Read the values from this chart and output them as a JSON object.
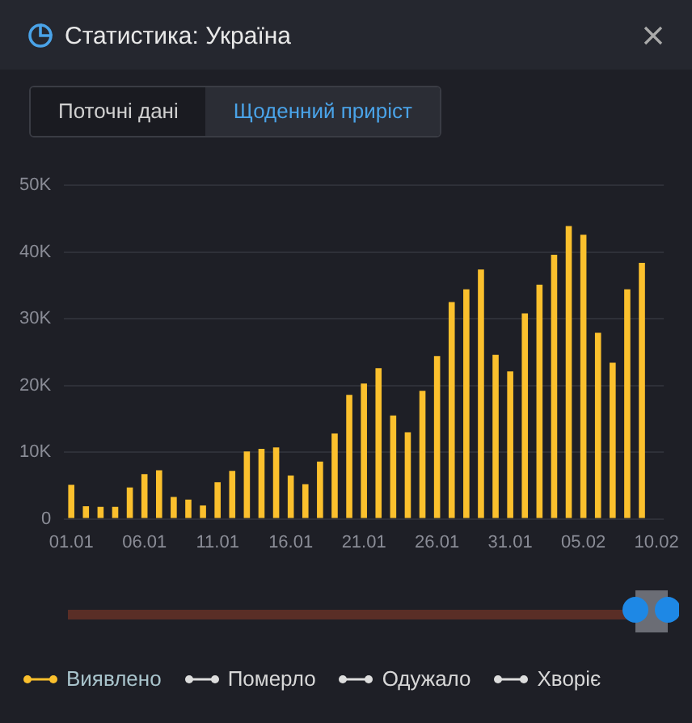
{
  "chart_data": {
    "type": "bar",
    "title": "Статистика: Україна",
    "annotations": [
      "Поточні дані",
      "Щоденний приріст"
    ],
    "categories": [
      "01.01",
      null,
      null,
      null,
      null,
      "06.01",
      null,
      null,
      null,
      null,
      "11.01",
      null,
      null,
      null,
      null,
      "16.01",
      null,
      null,
      null,
      null,
      "21.01",
      null,
      null,
      null,
      null,
      "26.01",
      null,
      null,
      null,
      null,
      "31.01",
      null,
      null,
      null,
      null,
      "05.02",
      null,
      null,
      null,
      null,
      "10.02"
    ],
    "series": [
      {
        "name": "Виявлено",
        "color": "#fbc02d",
        "values": [
          5100,
          1900,
          1800,
          1800,
          4700,
          6700,
          7300,
          3300,
          2900,
          2000,
          5500,
          7200,
          10100,
          10500,
          10700,
          6500,
          5200,
          8600,
          12800,
          18600,
          20300,
          22600,
          15500,
          13000,
          19200,
          24400,
          32500,
          34400,
          37400,
          24600,
          22100,
          30800,
          35100,
          39600,
          43900,
          42600,
          27900,
          23400,
          34400,
          38400,
          null
        ]
      },
      {
        "name": "Померло",
        "color": "#dddddd",
        "values": [
          null,
          null,
          null,
          null,
          null,
          null,
          null,
          null,
          null,
          null,
          null,
          null,
          null,
          null,
          null,
          null,
          null,
          null,
          null,
          null,
          null,
          null,
          null,
          null,
          null,
          null,
          null,
          null,
          null,
          null,
          null,
          null,
          null,
          null,
          null,
          null,
          null,
          null,
          null,
          null,
          null
        ]
      },
      {
        "name": "Одужало",
        "color": "#dddddd",
        "values": [
          null,
          null,
          null,
          null,
          null,
          null,
          null,
          null,
          null,
          null,
          null,
          null,
          null,
          null,
          null,
          null,
          null,
          null,
          null,
          null,
          null,
          null,
          null,
          null,
          null,
          null,
          null,
          null,
          null,
          null,
          null,
          null,
          null,
          null,
          null,
          null,
          null,
          null,
          null,
          null,
          null
        ]
      },
      {
        "name": "Хворіє",
        "color": "#dddddd",
        "values": [
          null,
          null,
          null,
          null,
          null,
          null,
          null,
          null,
          null,
          null,
          null,
          null,
          null,
          null,
          null,
          null,
          null,
          null,
          null,
          null,
          null,
          null,
          null,
          null,
          null,
          null,
          null,
          null,
          null,
          null,
          null,
          null,
          null,
          null,
          null,
          null,
          null,
          null,
          null,
          null,
          null
        ]
      }
    ],
    "ylim": [
      0,
      50000
    ],
    "yticks": [
      {
        "value": 0,
        "label": "0"
      },
      {
        "value": 10000,
        "label": "10K"
      },
      {
        "value": 20000,
        "label": "20K"
      },
      {
        "value": 30000,
        "label": "30K"
      },
      {
        "value": 40000,
        "label": "40K"
      },
      {
        "value": 50000,
        "label": "50K"
      }
    ],
    "grid": "y",
    "legend": "bottom"
  }
}
